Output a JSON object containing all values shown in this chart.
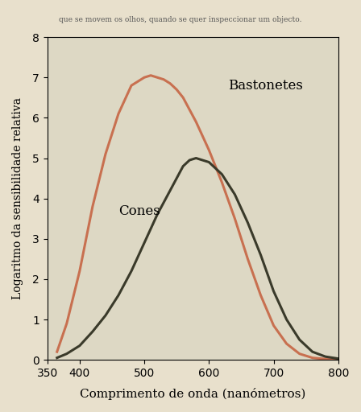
{
  "background_color": "#e8e0cc",
  "plot_bg_color": "#ddd8c4",
  "xlabel": "Comprimento de onda (nanómetros)",
  "ylabel": "Logaritmo da sensibilidade relativa",
  "xlim": [
    350,
    800
  ],
  "ylim": [
    0,
    8
  ],
  "xticks": [
    350,
    400,
    500,
    600,
    700,
    800
  ],
  "yticks": [
    0,
    1,
    2,
    3,
    4,
    5,
    6,
    7,
    8
  ],
  "bastonetes_color": "#c87050",
  "cones_color": "#3a3a2a",
  "bastonetes_label": "Bastonetes",
  "cones_label": "Cones",
  "bastonetes_x": [
    365,
    380,
    400,
    420,
    440,
    460,
    480,
    500,
    510,
    520,
    530,
    540,
    550,
    560,
    570,
    580,
    600,
    620,
    640,
    660,
    680,
    700,
    720,
    740,
    760,
    780,
    800
  ],
  "bastonetes_y": [
    0.2,
    0.9,
    2.2,
    3.8,
    5.1,
    6.1,
    6.8,
    7.0,
    7.05,
    7.0,
    6.95,
    6.85,
    6.7,
    6.5,
    6.2,
    5.9,
    5.2,
    4.4,
    3.5,
    2.5,
    1.6,
    0.85,
    0.4,
    0.15,
    0.05,
    0.02,
    0.01
  ],
  "cones_x": [
    365,
    380,
    400,
    420,
    440,
    460,
    480,
    500,
    520,
    540,
    560,
    570,
    580,
    600,
    620,
    640,
    660,
    680,
    700,
    720,
    740,
    760,
    780,
    800
  ],
  "cones_y": [
    0.05,
    0.15,
    0.35,
    0.7,
    1.1,
    1.6,
    2.2,
    2.9,
    3.6,
    4.2,
    4.8,
    4.95,
    5.0,
    4.9,
    4.6,
    4.1,
    3.4,
    2.6,
    1.7,
    1.0,
    0.5,
    0.2,
    0.08,
    0.03
  ],
  "linewidth": 2.2,
  "title_text": "",
  "xlabel_fontsize": 11,
  "ylabel_fontsize": 10,
  "tick_fontsize": 10,
  "label_fontsize": 12
}
